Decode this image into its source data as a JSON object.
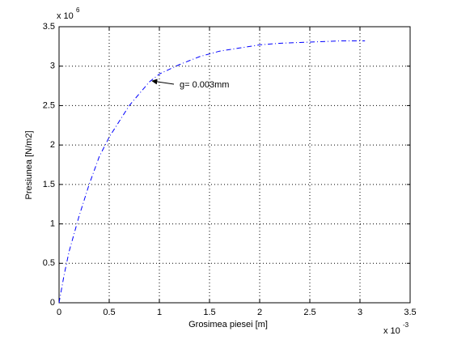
{
  "chart_data": {
    "type": "line",
    "x_label": "Grosimea piesei [m]",
    "y_label": "Presiunea [N/m2]",
    "x_multiplier": {
      "base": "x 10",
      "exponent": "-3"
    },
    "y_multiplier": {
      "base": "x 10",
      "exponent": "6"
    },
    "annotation": "g= 0.003mm",
    "x": [
      0,
      0.05,
      0.1,
      0.2,
      0.3,
      0.4,
      0.5,
      0.6,
      0.7,
      0.8,
      0.9,
      1.0,
      1.2,
      1.4,
      1.6,
      1.8,
      2.0,
      2.2,
      2.4,
      2.6,
      2.8,
      3.05
    ],
    "values": [
      0,
      0.35,
      0.65,
      1.1,
      1.5,
      1.85,
      2.1,
      2.3,
      2.5,
      2.65,
      2.8,
      2.9,
      3.02,
      3.12,
      3.19,
      3.23,
      3.27,
      3.29,
      3.3,
      3.31,
      3.32,
      3.32
    ],
    "color": "#0000ff",
    "xlim": [
      0,
      3.5
    ],
    "ylim": [
      0,
      3.5
    ],
    "xticks": [
      0,
      0.5,
      1,
      1.5,
      2,
      2.5,
      3,
      3.5
    ],
    "yticks": [
      0,
      0.5,
      1,
      1.5,
      2,
      2.5,
      3,
      3.5
    ],
    "grid": true
  }
}
